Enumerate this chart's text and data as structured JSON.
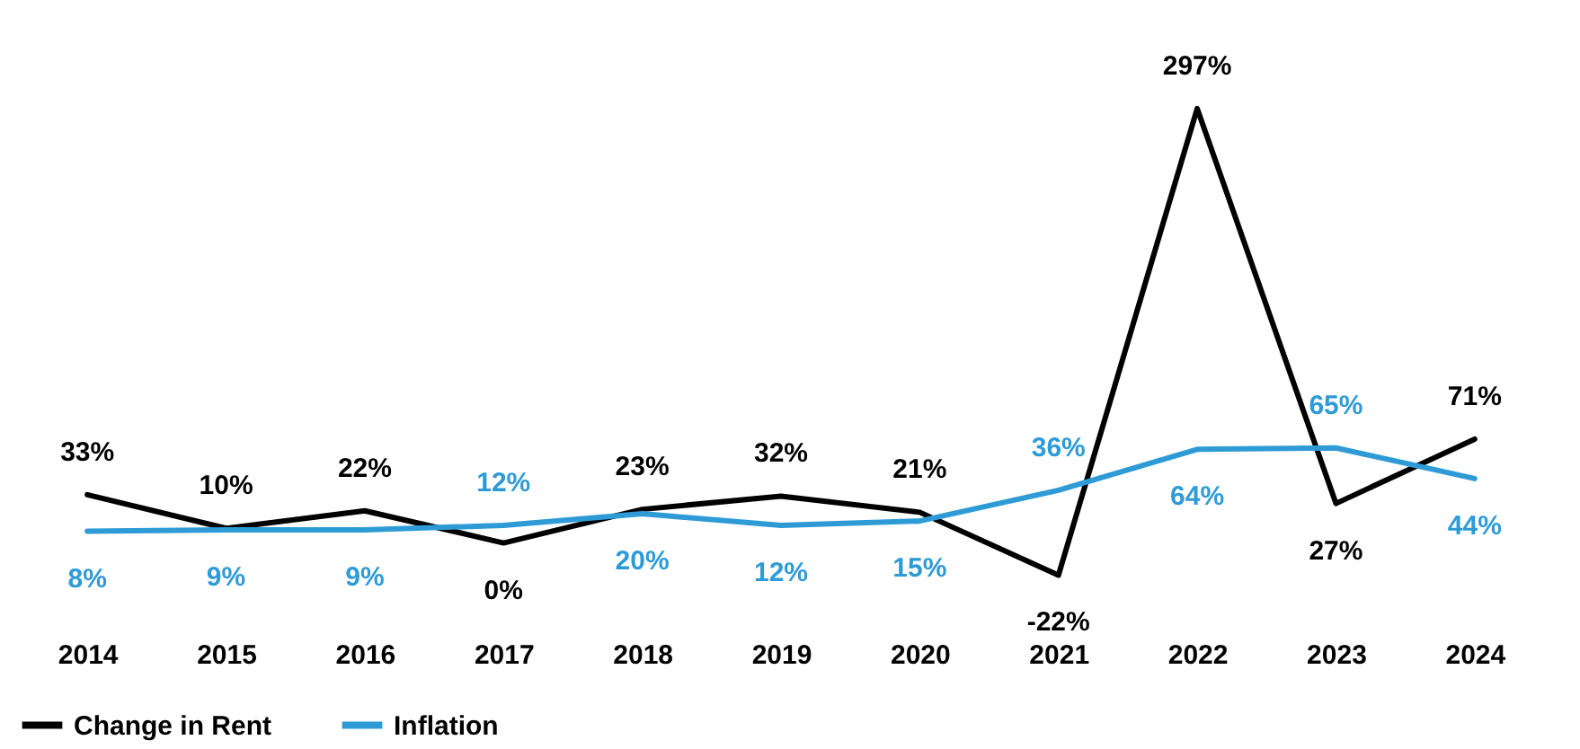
{
  "chart_data": {
    "type": "line",
    "categories": [
      "2014",
      "2015",
      "2016",
      "2017",
      "2018",
      "2019",
      "2020",
      "2021",
      "2022",
      "2023",
      "2024"
    ],
    "series": [
      {
        "name": "Change in Rent",
        "color": "#000000",
        "values": [
          33,
          10,
          22,
          0,
          23,
          32,
          21,
          -22,
          297,
          27,
          71
        ],
        "value_labels": [
          "33%",
          "10%",
          "22%",
          "0%",
          "23%",
          "32%",
          "21%",
          "-22%",
          "297%",
          "27%",
          "71%"
        ]
      },
      {
        "name": "Inflation",
        "color": "#2e9bd6",
        "values": [
          8,
          9,
          9,
          12,
          20,
          12,
          15,
          36,
          64,
          65,
          44
        ],
        "value_labels": [
          "8%",
          "9%",
          "9%",
          "12%",
          "20%",
          "12%",
          "15%",
          "36%",
          "64%",
          "65%",
          "44%"
        ]
      }
    ],
    "legend": "bottom",
    "grid": false
  }
}
